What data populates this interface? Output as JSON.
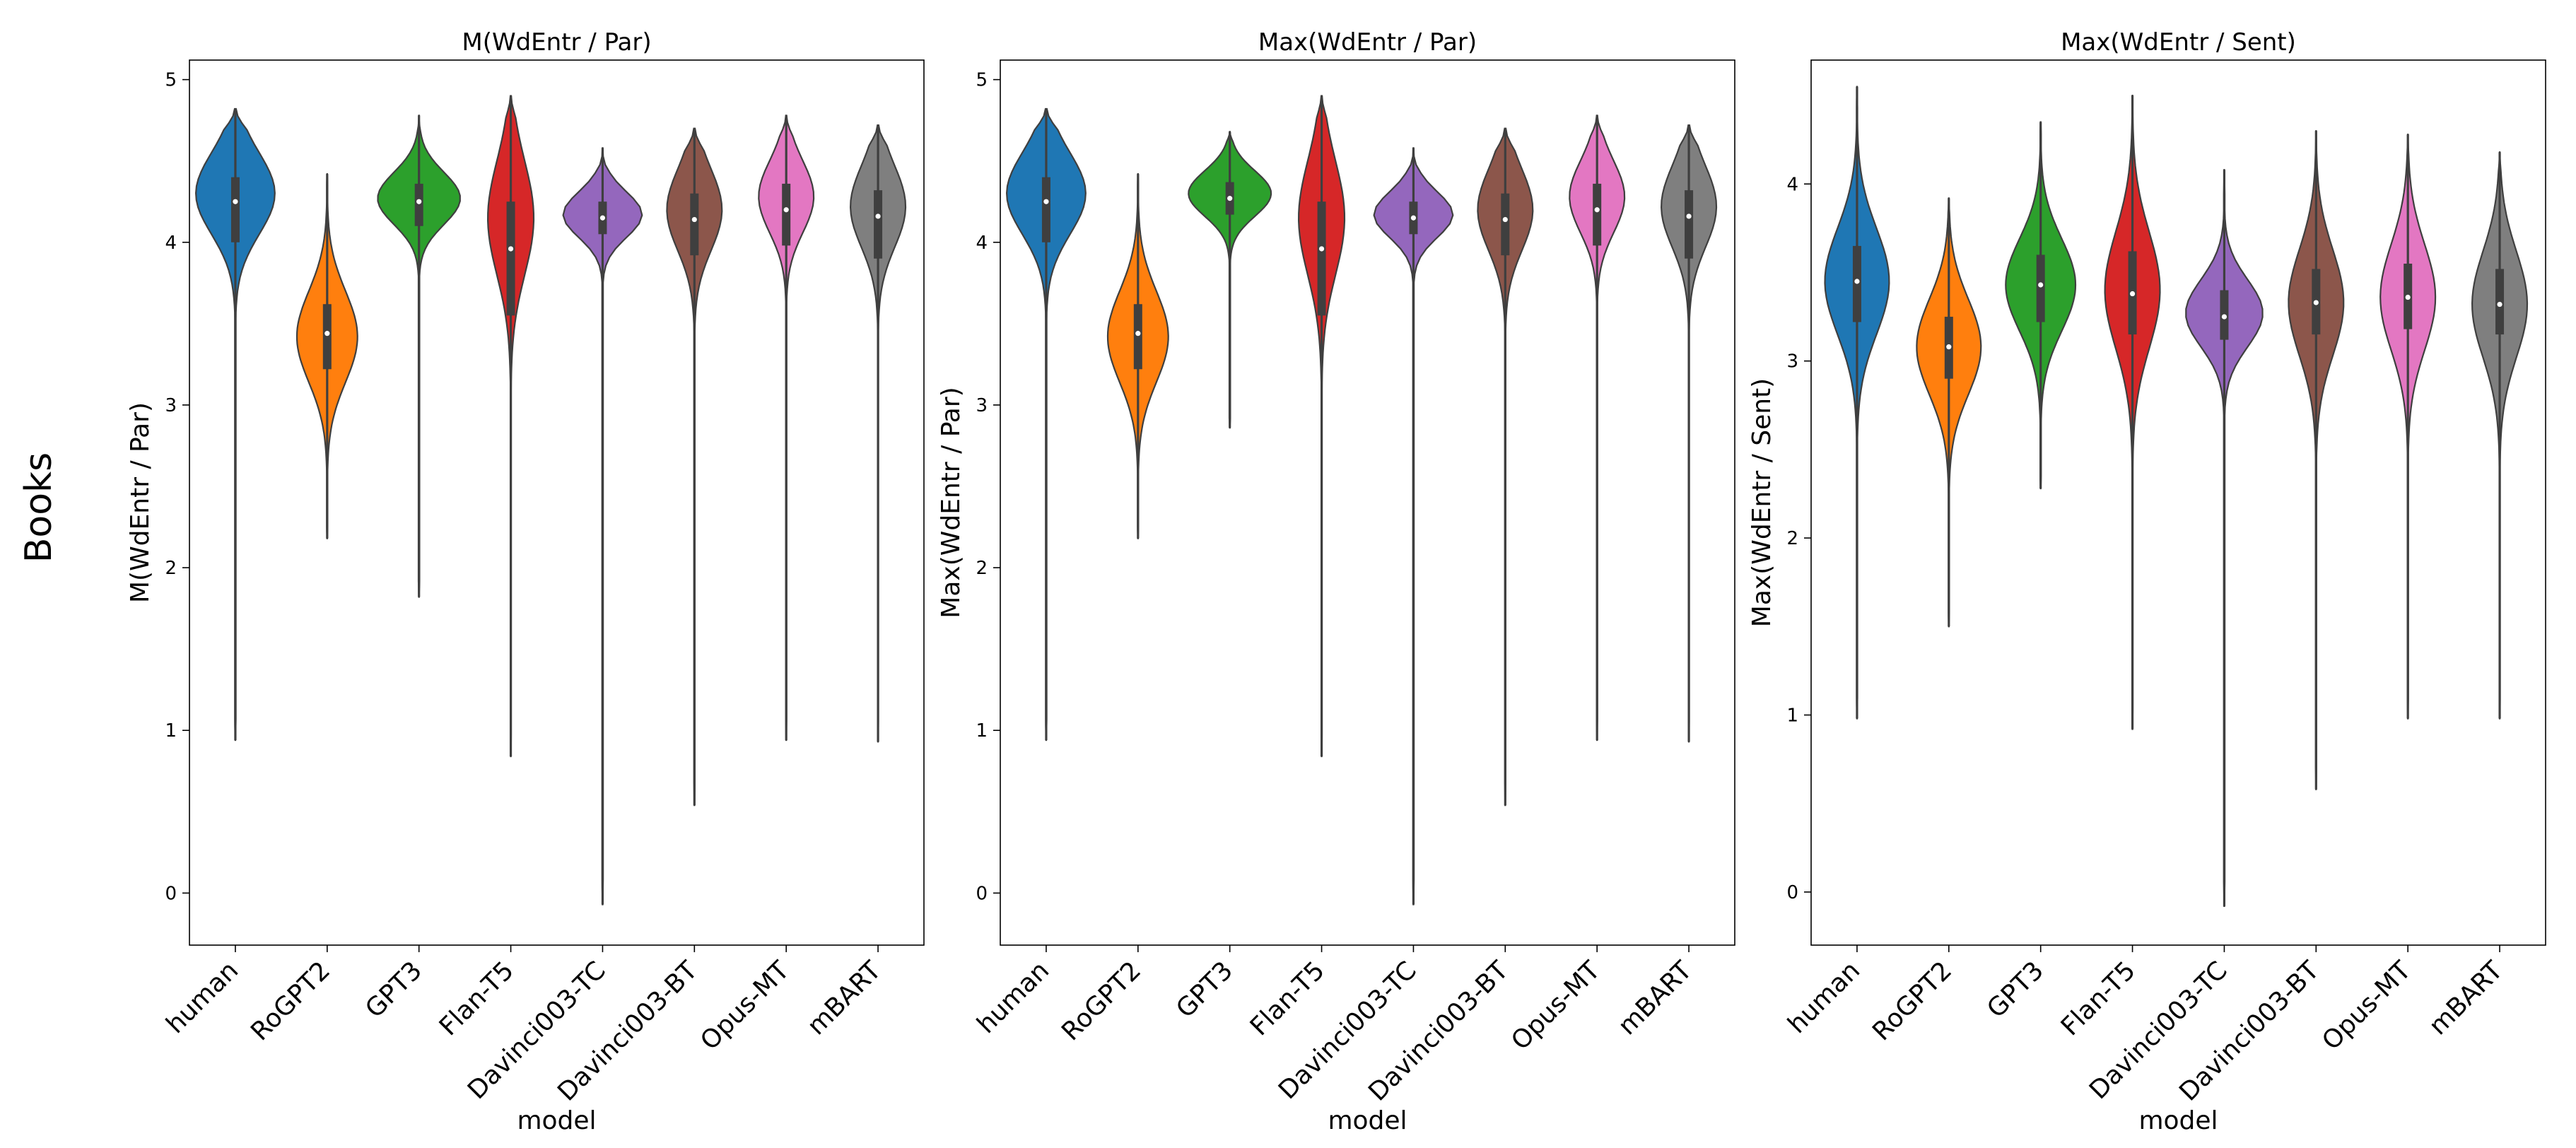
{
  "figure": {
    "row_label": "Books"
  },
  "colors": [
    "#1f77b4",
    "#ff7f0e",
    "#2ca02c",
    "#d62728",
    "#9467bd",
    "#8c564b",
    "#e377c2",
    "#7f7f7f"
  ],
  "chart_data": [
    {
      "type": "violin",
      "title": "M(WdEntr / Par)",
      "xlabel": "model",
      "ylabel": "M(WdEntr / Par)",
      "ylim": [
        -0.32,
        5.12
      ],
      "yticks": [
        0,
        1,
        2,
        3,
        4,
        5
      ],
      "categories": [
        "human",
        "RoGPT2",
        "GPT3",
        "Flan-T5",
        "Davinci003-TC",
        "Davinci003-BT",
        "Opus-MT",
        "mBART"
      ],
      "series": [
        {
          "name": "human",
          "min": 0.94,
          "max": 4.82,
          "q1": 4.0,
          "median": 4.25,
          "q3": 4.4,
          "peak": 4.3,
          "spread": 0.25,
          "maxwidth": 0.43
        },
        {
          "name": "RoGPT2",
          "min": 2.18,
          "max": 4.42,
          "q1": 3.22,
          "median": 3.44,
          "q3": 3.62,
          "peak": 3.42,
          "spread": 0.28,
          "maxwidth": 0.33
        },
        {
          "name": "GPT3",
          "min": 1.82,
          "max": 4.78,
          "q1": 4.1,
          "median": 4.25,
          "q3": 4.36,
          "peak": 4.27,
          "spread": 0.16,
          "maxwidth": 0.45
        },
        {
          "name": "Flan-T5",
          "min": 0.84,
          "max": 4.9,
          "q1": 3.55,
          "median": 3.96,
          "q3": 4.25,
          "peak": 4.15,
          "spread": 0.35,
          "maxwidth": 0.25
        },
        {
          "name": "Davinci003-TC",
          "min": -0.07,
          "max": 4.58,
          "q1": 4.05,
          "median": 4.15,
          "q3": 4.25,
          "peak": 4.17,
          "spread": 0.14,
          "maxwidth": 0.43
        },
        {
          "name": "Davinci003-BT",
          "min": 0.54,
          "max": 4.7,
          "q1": 3.92,
          "median": 4.14,
          "q3": 4.3,
          "peak": 4.2,
          "spread": 0.25,
          "maxwidth": 0.3
        },
        {
          "name": "Opus-MT",
          "min": 0.94,
          "max": 4.78,
          "q1": 3.98,
          "median": 4.2,
          "q3": 4.36,
          "peak": 4.28,
          "spread": 0.22,
          "maxwidth": 0.3
        },
        {
          "name": "mBART",
          "min": 0.93,
          "max": 4.72,
          "q1": 3.9,
          "median": 4.16,
          "q3": 4.32,
          "peak": 4.22,
          "spread": 0.25,
          "maxwidth": 0.3
        }
      ]
    },
    {
      "type": "violin",
      "title": "Max(WdEntr / Par)",
      "xlabel": "model",
      "ylabel": "Max(WdEntr / Par)",
      "ylim": [
        -0.32,
        5.12
      ],
      "yticks": [
        0,
        1,
        2,
        3,
        4,
        5
      ],
      "categories": [
        "human",
        "RoGPT2",
        "GPT3",
        "Flan-T5",
        "Davinci003-TC",
        "Davinci003-BT",
        "Opus-MT",
        "mBART"
      ],
      "series": [
        {
          "name": "human",
          "min": 0.94,
          "max": 4.82,
          "q1": 4.0,
          "median": 4.25,
          "q3": 4.4,
          "peak": 4.3,
          "spread": 0.25,
          "maxwidth": 0.43
        },
        {
          "name": "RoGPT2",
          "min": 2.18,
          "max": 4.42,
          "q1": 3.22,
          "median": 3.44,
          "q3": 3.62,
          "peak": 3.42,
          "spread": 0.28,
          "maxwidth": 0.33
        },
        {
          "name": "GPT3",
          "min": 2.86,
          "max": 4.68,
          "q1": 4.17,
          "median": 4.27,
          "q3": 4.37,
          "peak": 4.3,
          "spread": 0.14,
          "maxwidth": 0.45
        },
        {
          "name": "Flan-T5",
          "min": 0.84,
          "max": 4.9,
          "q1": 3.55,
          "median": 3.96,
          "q3": 4.25,
          "peak": 4.15,
          "spread": 0.35,
          "maxwidth": 0.25
        },
        {
          "name": "Davinci003-TC",
          "min": -0.07,
          "max": 4.58,
          "q1": 4.05,
          "median": 4.15,
          "q3": 4.25,
          "peak": 4.17,
          "spread": 0.14,
          "maxwidth": 0.43
        },
        {
          "name": "Davinci003-BT",
          "min": 0.54,
          "max": 4.7,
          "q1": 3.92,
          "median": 4.14,
          "q3": 4.3,
          "peak": 4.2,
          "spread": 0.25,
          "maxwidth": 0.3
        },
        {
          "name": "Opus-MT",
          "min": 0.94,
          "max": 4.78,
          "q1": 3.98,
          "median": 4.2,
          "q3": 4.36,
          "peak": 4.28,
          "spread": 0.22,
          "maxwidth": 0.3
        },
        {
          "name": "mBART",
          "min": 0.93,
          "max": 4.72,
          "q1": 3.9,
          "median": 4.16,
          "q3": 4.32,
          "peak": 4.22,
          "spread": 0.25,
          "maxwidth": 0.3
        }
      ]
    },
    {
      "type": "violin",
      "title": "Max(WdEntr / Sent)",
      "xlabel": "model",
      "ylabel": "Max(WdEntr / Sent)",
      "ylim": [
        -0.3,
        4.7
      ],
      "yticks": [
        0,
        1,
        2,
        3,
        4
      ],
      "categories": [
        "human",
        "RoGPT2",
        "GPT3",
        "Flan-T5",
        "Davinci003-TC",
        "Davinci003-BT",
        "Opus-MT",
        "mBART"
      ],
      "series": [
        {
          "name": "human",
          "min": 0.98,
          "max": 4.55,
          "q1": 3.22,
          "median": 3.45,
          "q3": 3.65,
          "peak": 3.45,
          "spread": 0.3,
          "maxwidth": 0.35
        },
        {
          "name": "RoGPT2",
          "min": 1.5,
          "max": 3.92,
          "q1": 2.9,
          "median": 3.08,
          "q3": 3.25,
          "peak": 3.08,
          "spread": 0.27,
          "maxwidth": 0.35
        },
        {
          "name": "GPT3",
          "min": 2.28,
          "max": 4.35,
          "q1": 3.22,
          "median": 3.43,
          "q3": 3.6,
          "peak": 3.43,
          "spread": 0.26,
          "maxwidth": 0.38
        },
        {
          "name": "Flan-T5",
          "min": 0.92,
          "max": 4.5,
          "q1": 3.15,
          "median": 3.38,
          "q3": 3.62,
          "peak": 3.4,
          "spread": 0.33,
          "maxwidth": 0.3
        },
        {
          "name": "Davinci003-TC",
          "min": -0.08,
          "max": 4.08,
          "q1": 3.12,
          "median": 3.25,
          "q3": 3.4,
          "peak": 3.27,
          "spread": 0.19,
          "maxwidth": 0.42
        },
        {
          "name": "Davinci003-BT",
          "min": 0.58,
          "max": 4.3,
          "q1": 3.15,
          "median": 3.33,
          "q3": 3.52,
          "peak": 3.33,
          "spread": 0.3,
          "maxwidth": 0.3
        },
        {
          "name": "Opus-MT",
          "min": 0.98,
          "max": 4.28,
          "q1": 3.18,
          "median": 3.36,
          "q3": 3.55,
          "peak": 3.36,
          "spread": 0.3,
          "maxwidth": 0.3
        },
        {
          "name": "mBART",
          "min": 0.98,
          "max": 4.18,
          "q1": 3.15,
          "median": 3.32,
          "q3": 3.52,
          "peak": 3.32,
          "spread": 0.3,
          "maxwidth": 0.3
        }
      ]
    }
  ]
}
